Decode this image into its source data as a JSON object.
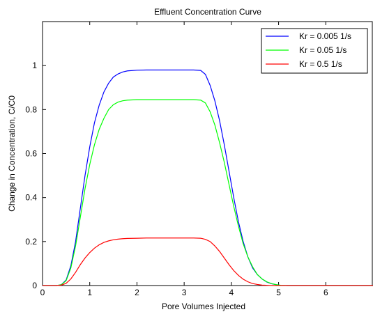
{
  "chart_data": {
    "type": "line",
    "title": "Effluent Concentration Curve",
    "xlabel": "Pore Volumes Injected",
    "ylabel": "Change in Concentration, C/C0",
    "xlim": [
      0,
      7
    ],
    "ylim": [
      0,
      1.2
    ],
    "xticks": [
      0,
      1,
      2,
      3,
      4,
      5,
      6
    ],
    "yticks": [
      0,
      0.2,
      0.4,
      0.6,
      0.8,
      1
    ],
    "grid": false,
    "legend_position": "top-right",
    "series": [
      {
        "name": "Kr = 0.005 1/s",
        "color": "#0000ff",
        "x": [
          0,
          0.3,
          0.4,
          0.5,
          0.6,
          0.7,
          0.8,
          0.9,
          1.0,
          1.1,
          1.2,
          1.3,
          1.4,
          1.5,
          1.6,
          1.7,
          1.8,
          2.0,
          2.2,
          2.5,
          2.8,
          3.0,
          3.2,
          3.35,
          3.45,
          3.55,
          3.65,
          3.75,
          3.85,
          3.95,
          4.05,
          4.15,
          4.25,
          4.35,
          4.45,
          4.55,
          4.65,
          4.75,
          4.85,
          4.95,
          5.05,
          5.2,
          7
        ],
        "y": [
          0,
          0,
          0.004,
          0.025,
          0.09,
          0.2,
          0.35,
          0.5,
          0.63,
          0.74,
          0.82,
          0.88,
          0.92,
          0.948,
          0.962,
          0.971,
          0.976,
          0.979,
          0.98,
          0.98,
          0.98,
          0.98,
          0.98,
          0.978,
          0.96,
          0.91,
          0.84,
          0.75,
          0.64,
          0.52,
          0.4,
          0.29,
          0.2,
          0.13,
          0.08,
          0.05,
          0.03,
          0.016,
          0.008,
          0.004,
          0.001,
          0,
          0
        ]
      },
      {
        "name": "Kr = 0.05 1/s",
        "color": "#00ff00",
        "x": [
          0,
          0.3,
          0.4,
          0.5,
          0.6,
          0.7,
          0.8,
          0.9,
          1.0,
          1.1,
          1.2,
          1.3,
          1.4,
          1.5,
          1.6,
          1.7,
          1.8,
          2.0,
          2.2,
          2.5,
          2.8,
          3.0,
          3.2,
          3.35,
          3.45,
          3.55,
          3.65,
          3.75,
          3.85,
          3.95,
          4.05,
          4.15,
          4.25,
          4.35,
          4.45,
          4.55,
          4.65,
          4.75,
          4.85,
          4.95,
          5.05,
          5.2,
          7
        ],
        "y": [
          0,
          0,
          0.004,
          0.022,
          0.08,
          0.18,
          0.31,
          0.44,
          0.55,
          0.64,
          0.71,
          0.76,
          0.8,
          0.822,
          0.834,
          0.84,
          0.843,
          0.845,
          0.845,
          0.845,
          0.845,
          0.845,
          0.845,
          0.843,
          0.83,
          0.79,
          0.73,
          0.65,
          0.56,
          0.46,
          0.36,
          0.27,
          0.19,
          0.13,
          0.085,
          0.05,
          0.03,
          0.017,
          0.009,
          0.004,
          0.001,
          0,
          0
        ]
      },
      {
        "name": "Kr = 0.5 1/s",
        "color": "#ff0000",
        "x": [
          0,
          0.3,
          0.4,
          0.5,
          0.6,
          0.7,
          0.8,
          0.9,
          1.0,
          1.1,
          1.2,
          1.3,
          1.4,
          1.5,
          1.6,
          1.7,
          1.8,
          2.0,
          2.2,
          2.5,
          2.8,
          3.0,
          3.2,
          3.35,
          3.45,
          3.55,
          3.65,
          3.75,
          3.85,
          3.95,
          4.05,
          4.15,
          4.25,
          4.35,
          4.45,
          4.55,
          4.65,
          4.75,
          4.85,
          4.95,
          5.05,
          5.2,
          7
        ],
        "y": [
          0,
          0,
          0.002,
          0.01,
          0.03,
          0.06,
          0.095,
          0.125,
          0.15,
          0.17,
          0.185,
          0.196,
          0.203,
          0.208,
          0.211,
          0.213,
          0.214,
          0.215,
          0.216,
          0.216,
          0.216,
          0.216,
          0.216,
          0.215,
          0.21,
          0.2,
          0.18,
          0.155,
          0.125,
          0.095,
          0.068,
          0.046,
          0.029,
          0.017,
          0.009,
          0.005,
          0.002,
          0.001,
          0,
          0,
          0,
          0,
          0
        ]
      }
    ]
  }
}
